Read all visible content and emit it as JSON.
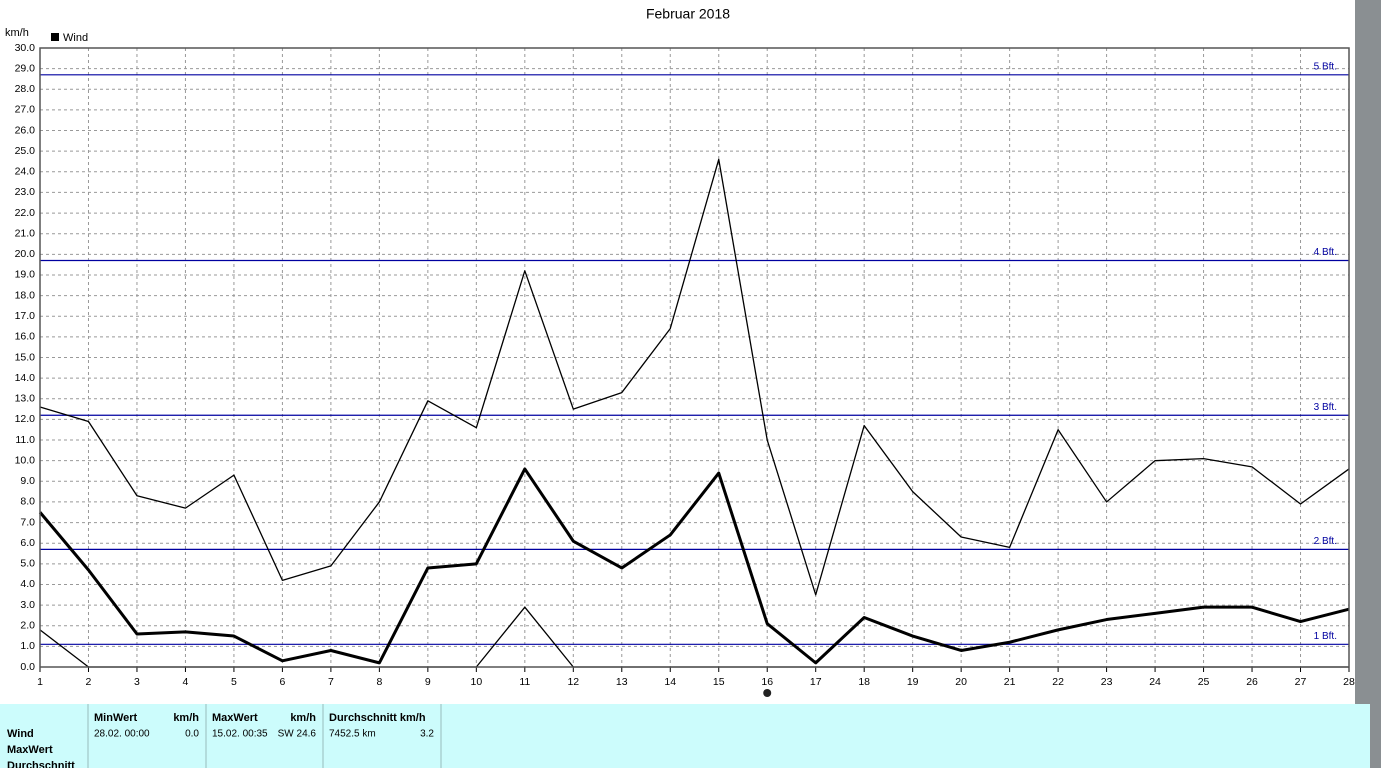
{
  "chart_data": {
    "type": "line",
    "title": "Februar 2018",
    "y_label": "km/h",
    "legend": "Wind",
    "legend_color": "#000000",
    "x": [
      1,
      2,
      3,
      4,
      5,
      6,
      7,
      8,
      9,
      10,
      11,
      12,
      13,
      14,
      15,
      16,
      17,
      18,
      19,
      20,
      21,
      22,
      23,
      24,
      25,
      26,
      27,
      28
    ],
    "xlim": [
      1,
      28
    ],
    "xticks": [
      1,
      2,
      3,
      4,
      5,
      6,
      7,
      8,
      9,
      10,
      11,
      12,
      13,
      14,
      15,
      16,
      17,
      18,
      19,
      20,
      21,
      22,
      23,
      24,
      25,
      26,
      27,
      28
    ],
    "ylim": [
      0,
      30
    ],
    "yticks": [
      {
        "value": 0,
        "label": "0.0"
      },
      {
        "value": 1,
        "label": "1.0"
      },
      {
        "value": 2,
        "label": "2.0"
      },
      {
        "value": 3,
        "label": "3.0"
      },
      {
        "value": 4,
        "label": "4.0"
      },
      {
        "value": 5,
        "label": "5.0"
      },
      {
        "value": 6,
        "label": "6.0"
      },
      {
        "value": 7,
        "label": "7.0"
      },
      {
        "value": 8,
        "label": "8.0"
      },
      {
        "value": 9,
        "label": "9.0"
      },
      {
        "value": 10,
        "label": "10.0"
      },
      {
        "value": 11,
        "label": "11.0"
      },
      {
        "value": 12,
        "label": "12.0"
      },
      {
        "value": 13,
        "label": "13.0"
      },
      {
        "value": 14,
        "label": "14.0"
      },
      {
        "value": 15,
        "label": "15.0"
      },
      {
        "value": 16,
        "label": "16.0"
      },
      {
        "value": 17,
        "label": "17.0"
      },
      {
        "value": 18,
        "label": "18.0"
      },
      {
        "value": 19,
        "label": "19.0"
      },
      {
        "value": 20,
        "label": "20.0"
      },
      {
        "value": 21,
        "label": "21.0"
      },
      {
        "value": 22,
        "label": "22.0"
      },
      {
        "value": 23,
        "label": "23.0"
      },
      {
        "value": 24,
        "label": "24.0"
      },
      {
        "value": 25,
        "label": "25.0"
      },
      {
        "value": 26,
        "label": "26.0"
      },
      {
        "value": 27,
        "label": "27.0"
      },
      {
        "value": 28,
        "label": "28.0"
      },
      {
        "value": 29,
        "label": "29.0"
      },
      {
        "value": 30,
        "label": "30.0"
      }
    ],
    "grid": true,
    "series": [
      {
        "color": "#000000",
        "width": 1.3,
        "values": [
          12.6,
          11.9,
          8.3,
          7.7,
          9.3,
          4.2,
          4.9,
          8.0,
          12.9,
          11.6,
          19.2,
          12.5,
          13.3,
          16.4,
          24.6,
          11.0,
          3.5,
          11.7,
          8.5,
          6.3,
          5.8,
          11.5,
          8.0,
          10.0,
          10.1,
          9.7,
          7.9,
          9.6
        ]
      },
      {
        "color": "#000000",
        "width": 3,
        "values": [
          7.5,
          4.7,
          1.6,
          1.7,
          1.5,
          0.3,
          0.8,
          0.2,
          4.8,
          5.0,
          9.6,
          6.1,
          4.8,
          6.4,
          9.4,
          2.1,
          0.2,
          2.4,
          1.5,
          0.8,
          1.2,
          1.8,
          2.3,
          2.6,
          2.9,
          2.9,
          2.2,
          2.8
        ]
      },
      {
        "color": "#000000",
        "width": 1.3,
        "values": [
          1.8,
          0,
          0,
          0,
          0,
          0,
          0,
          0,
          0,
          0,
          2.9,
          0,
          0,
          0,
          0,
          0,
          0,
          0,
          0,
          0,
          0,
          0,
          0,
          0,
          0,
          0,
          0,
          0
        ]
      }
    ],
    "annotations": [
      {
        "label": "1 Bft.",
        "value": 1.1,
        "color": "#0000a0"
      },
      {
        "label": "2 Bft.",
        "value": 5.7,
        "color": "#0000a0"
      },
      {
        "label": "3 Bft.",
        "value": 12.2,
        "color": "#0000a0"
      },
      {
        "label": "4 Bft.",
        "value": 19.7,
        "color": "#0000a0"
      },
      {
        "label": "5 Bft.",
        "value": 28.7,
        "color": "#0000a0"
      }
    ]
  },
  "table": {
    "row_labels": [
      "Wind",
      "MaxWert",
      "Durchschnitt"
    ],
    "columns": [
      {
        "header": "MinWert",
        "unit": "km/h",
        "date": "28.02.  00:00",
        "value": "0.0"
      },
      {
        "header": "MaxWert",
        "unit": "km/h",
        "date": "15.02.  00:35",
        "value": "SW 24.6"
      },
      {
        "header": "Durchschnitt km/h",
        "unit": "",
        "date": "7452.5 km",
        "value": "3.2"
      }
    ]
  }
}
